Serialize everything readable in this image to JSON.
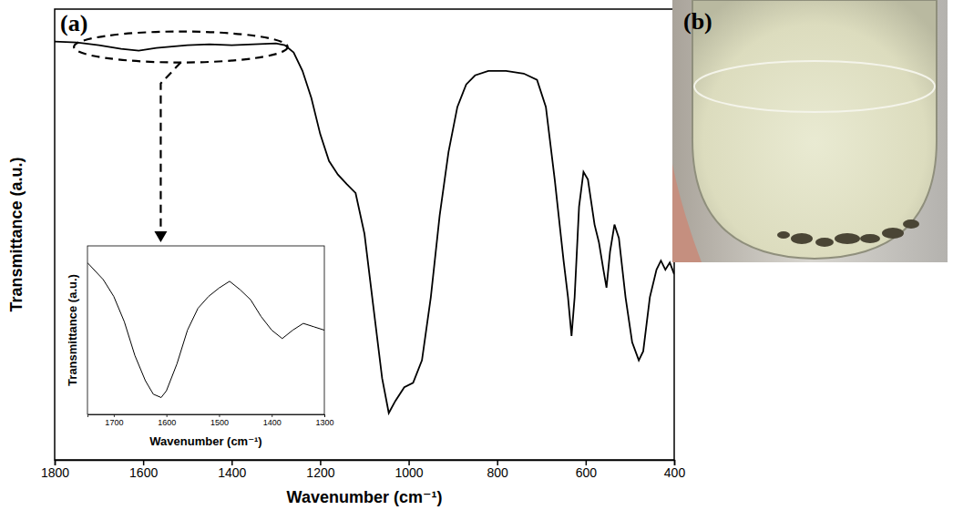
{
  "chart_data": [
    {
      "type": "line",
      "panel_label": "(a)",
      "x_label": "Wavenumber (cm⁻¹)",
      "y_label": "Transmittance (a.u.)",
      "x": [
        1800,
        1750,
        1700,
        1650,
        1610,
        1570,
        1500,
        1450,
        1400,
        1350,
        1300,
        1280,
        1260,
        1240,
        1220,
        1200,
        1180,
        1160,
        1140,
        1120,
        1100,
        1080,
        1060,
        1045,
        1030,
        1010,
        990,
        970,
        950,
        930,
        910,
        890,
        870,
        850,
        820,
        780,
        740,
        710,
        690,
        670,
        650,
        640,
        632,
        625,
        615,
        605,
        595,
        580,
        570,
        560,
        553,
        545,
        535,
        525,
        510,
        495,
        480,
        470,
        455,
        440,
        430,
        420,
        410,
        400
      ],
      "values": [
        92.8,
        92.6,
        92,
        91.2,
        90.8,
        91.4,
        92,
        92.2,
        92,
        92.2,
        92.4,
        92,
        90.4,
        86.3,
        80.3,
        72.3,
        66.3,
        63.3,
        61.2,
        59.2,
        50.2,
        34.1,
        18.1,
        10.4,
        13.1,
        16.1,
        17.1,
        22.1,
        36.1,
        54.2,
        68.3,
        78.3,
        83.3,
        85.3,
        86.3,
        86.3,
        85.7,
        84.3,
        78.3,
        62.2,
        44.2,
        36.1,
        27.5,
        36.1,
        56.2,
        63.9,
        62.2,
        52.2,
        48.2,
        42.2,
        38.2,
        46.2,
        52.2,
        49.2,
        36.1,
        26.1,
        22.1,
        24.1,
        36.1,
        42.2,
        44.2,
        42.2,
        43.8,
        41.2
      ],
      "color": "#000000",
      "xlim": [
        1800,
        400
      ],
      "xticks": [
        1800,
        1600,
        1400,
        1200,
        1000,
        800,
        600,
        400
      ],
      "ylim": [
        0,
        100
      ],
      "tick_labels": "x"
    },
    {
      "type": "line",
      "x_label": "Wavenumber (cm⁻¹)",
      "y_label": "Transmittance (a.u.)",
      "x": [
        1750,
        1720,
        1700,
        1680,
        1660,
        1640,
        1625,
        1610,
        1600,
        1580,
        1560,
        1540,
        1520,
        1500,
        1480,
        1460,
        1440,
        1420,
        1400,
        1380,
        1360,
        1340,
        1320,
        1300
      ],
      "values": [
        90,
        80,
        70,
        55,
        35,
        20,
        12,
        10,
        14,
        30,
        50,
        63,
        70,
        75,
        79,
        74,
        68,
        58,
        50,
        45,
        50,
        54,
        52,
        50
      ],
      "color": "#000000",
      "xlim": [
        1750,
        1300
      ],
      "xticks": [
        1700,
        1600,
        1500,
        1400,
        1300
      ],
      "ylim": [
        0,
        100
      ],
      "tick_labels": "x"
    }
  ],
  "photo": {
    "panel_label": "(b)"
  }
}
